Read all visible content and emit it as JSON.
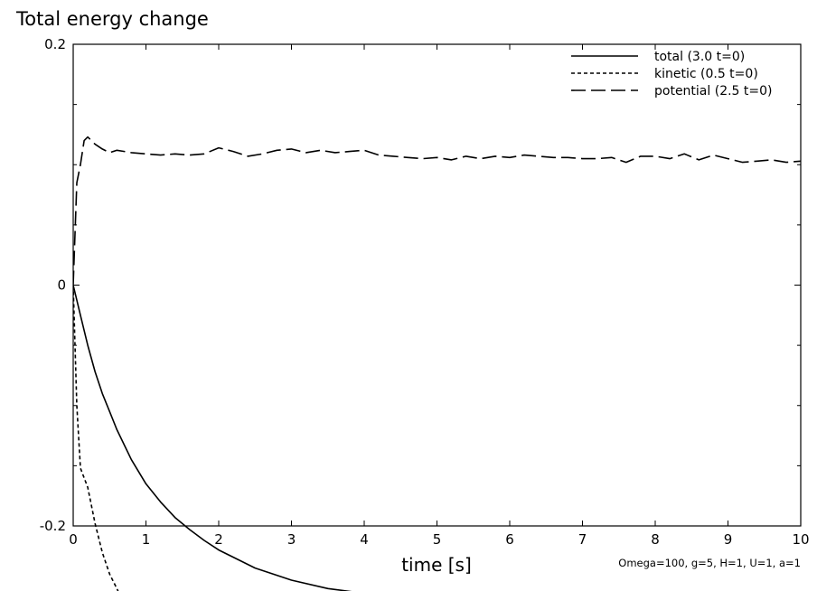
{
  "chart_data": {
    "type": "line",
    "title": "Total energy change",
    "xlabel": "time [s]",
    "ylabel": "",
    "xlim": [
      0,
      10
    ],
    "ylim": [
      -0.2,
      0.2
    ],
    "xticks": [
      0,
      1,
      2,
      3,
      4,
      5,
      6,
      7,
      8,
      9,
      10
    ],
    "yticks": [
      -0.2,
      0,
      0.2
    ],
    "ytick_labels": [
      "-0.2",
      "0",
      "0.2"
    ],
    "legend_position": "top-right",
    "annotation": "Omega=100, g=5, H=1, U=1, a=1",
    "series": [
      {
        "name": "total (3.0 t=0)",
        "style": "solid",
        "x": [
          0,
          0.1,
          0.2,
          0.3,
          0.4,
          0.5,
          0.6,
          0.8,
          1.0,
          1.2,
          1.4,
          1.6,
          1.8,
          2.0,
          2.5,
          3.0,
          3.5,
          4.0,
          4.5,
          5.0
        ],
        "y": [
          0,
          -0.025,
          -0.05,
          -0.072,
          -0.09,
          -0.105,
          -0.12,
          -0.145,
          -0.165,
          -0.18,
          -0.193,
          -0.203,
          -0.212,
          -0.22,
          -0.235,
          -0.245,
          -0.252,
          -0.256,
          -0.259,
          -0.261
        ]
      },
      {
        "name": "kinetic (0.5 t=0)",
        "style": "dashed",
        "x": [
          0,
          0.05,
          0.1,
          0.2,
          0.3,
          0.4,
          0.5,
          0.6,
          0.7
        ],
        "y": [
          0,
          -0.1,
          -0.152,
          -0.168,
          -0.198,
          -0.222,
          -0.24,
          -0.252,
          -0.265
        ]
      },
      {
        "name": "potential (2.5 t=0)",
        "style": "longdash",
        "x": [
          0,
          0.05,
          0.1,
          0.15,
          0.2,
          0.3,
          0.4,
          0.5,
          0.6,
          0.8,
          1.0,
          1.2,
          1.4,
          1.6,
          1.8,
          2.0,
          2.2,
          2.4,
          2.6,
          2.8,
          3.0,
          3.2,
          3.4,
          3.6,
          3.8,
          4.0,
          4.2,
          4.4,
          4.6,
          4.8,
          5.0,
          5.2,
          5.4,
          5.6,
          5.8,
          6.0,
          6.2,
          6.4,
          6.6,
          6.8,
          7.0,
          7.2,
          7.4,
          7.6,
          7.8,
          8.0,
          8.2,
          8.4,
          8.6,
          8.8,
          9.0,
          9.2,
          9.4,
          9.6,
          9.8,
          10.0
        ],
        "y": [
          0,
          0.085,
          0.1,
          0.12,
          0.123,
          0.117,
          0.113,
          0.11,
          0.112,
          0.11,
          0.109,
          0.108,
          0.109,
          0.108,
          0.109,
          0.114,
          0.111,
          0.107,
          0.109,
          0.112,
          0.113,
          0.11,
          0.112,
          0.11,
          0.111,
          0.112,
          0.108,
          0.107,
          0.106,
          0.105,
          0.106,
          0.104,
          0.107,
          0.105,
          0.107,
          0.106,
          0.108,
          0.107,
          0.106,
          0.106,
          0.105,
          0.105,
          0.106,
          0.102,
          0.107,
          0.107,
          0.105,
          0.109,
          0.104,
          0.108,
          0.105,
          0.102,
          0.103,
          0.104,
          0.102,
          0.103
        ]
      }
    ]
  }
}
